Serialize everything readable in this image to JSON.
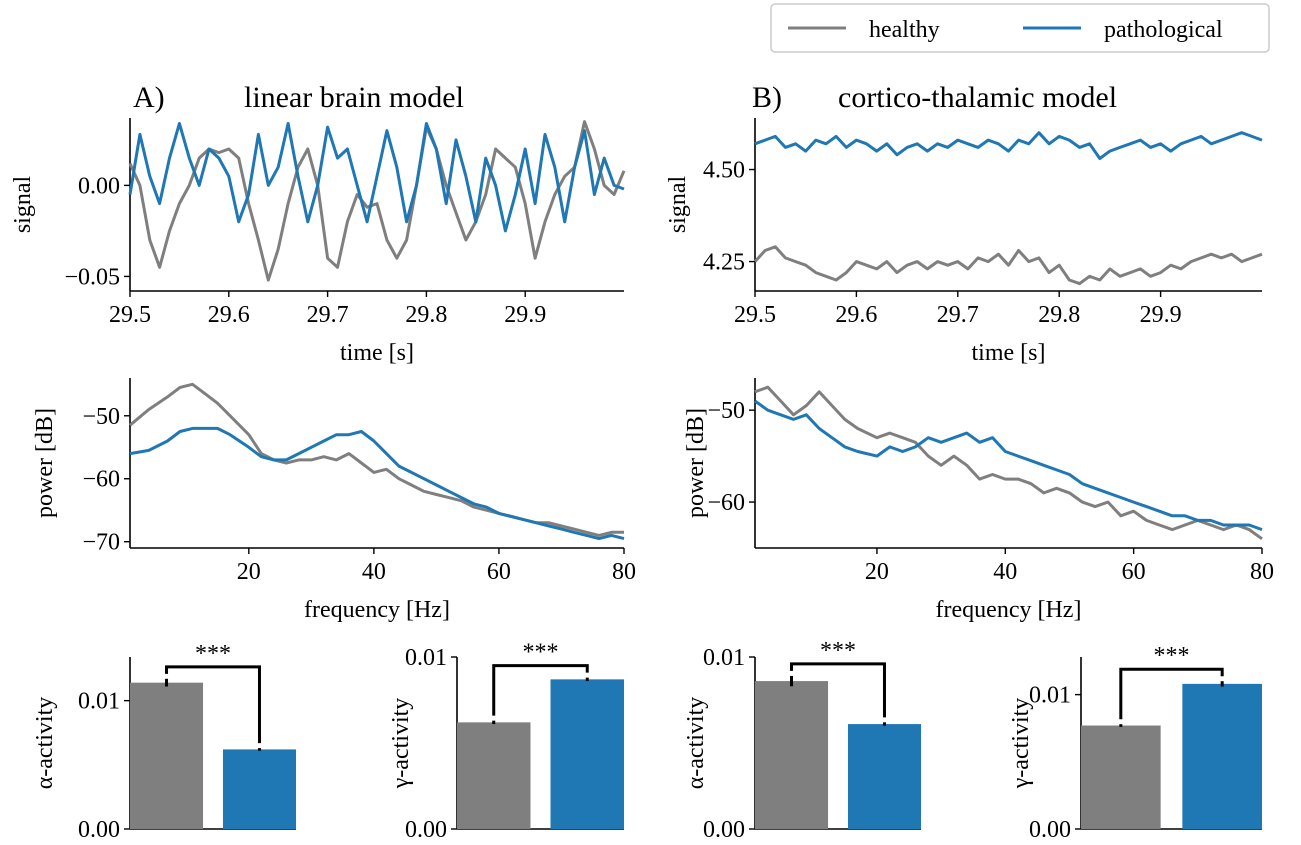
{
  "legend": {
    "entries": [
      {
        "label": "healthy",
        "color": "#7f7f7f"
      },
      {
        "label": "pathological",
        "color": "#1f77b4"
      }
    ],
    "placement": "top-right"
  },
  "colors": {
    "healthy": "#7f7f7f",
    "pathological": "#1f77b4"
  },
  "panels": {
    "A": {
      "letter": "A)",
      "title": "linear brain model"
    },
    "B": {
      "letter": "B)",
      "title": "cortico-thalamic model"
    }
  },
  "chart_data": [
    {
      "id": "signalA",
      "type": "line",
      "panel": "A",
      "xlabel": "time [s]",
      "ylabel": "signal",
      "xlim": [
        29.5,
        30.0
      ],
      "ylim": [
        -0.058,
        0.037
      ],
      "xticks": [
        29.5,
        29.6,
        29.7,
        29.8,
        29.9
      ],
      "xticklabels": [
        "29.5",
        "29.6",
        "29.7",
        "29.8",
        "29.9"
      ],
      "yticks": [
        -0.05,
        0.0
      ],
      "yticklabels": [
        "−0.05",
        "0.00"
      ],
      "series": [
        {
          "name": "healthy",
          "color": "#7f7f7f",
          "x": [
            29.5,
            29.51,
            29.52,
            29.53,
            29.54,
            29.55,
            29.56,
            29.57,
            29.58,
            29.59,
            29.6,
            29.61,
            29.62,
            29.63,
            29.64,
            29.65,
            29.66,
            29.67,
            29.68,
            29.69,
            29.7,
            29.71,
            29.72,
            29.73,
            29.74,
            29.75,
            29.76,
            29.77,
            29.78,
            29.79,
            29.8,
            29.81,
            29.82,
            29.83,
            29.84,
            29.85,
            29.86,
            29.87,
            29.88,
            29.89,
            29.9,
            29.91,
            29.92,
            29.93,
            29.94,
            29.95,
            29.96,
            29.97,
            29.98,
            29.99,
            30.0
          ],
          "y": [
            0.012,
            0.0,
            -0.03,
            -0.045,
            -0.025,
            -0.01,
            0.0,
            0.015,
            0.02,
            0.018,
            0.02,
            0.015,
            -0.01,
            -0.03,
            -0.052,
            -0.035,
            -0.01,
            0.01,
            0.02,
            0.0,
            -0.04,
            -0.045,
            -0.02,
            -0.005,
            -0.012,
            -0.01,
            -0.03,
            -0.04,
            -0.03,
            0.0,
            0.032,
            0.02,
            0.0,
            -0.015,
            -0.03,
            -0.02,
            -0.005,
            0.02,
            0.015,
            0.01,
            -0.01,
            -0.04,
            -0.02,
            -0.005,
            0.005,
            0.01,
            0.035,
            0.02,
            0.0,
            -0.005,
            0.008
          ]
        },
        {
          "name": "pathological",
          "color": "#1f77b4",
          "x": [
            29.5,
            29.51,
            29.52,
            29.53,
            29.54,
            29.55,
            29.56,
            29.57,
            29.58,
            29.59,
            29.6,
            29.61,
            29.62,
            29.63,
            29.64,
            29.65,
            29.66,
            29.67,
            29.68,
            29.69,
            29.7,
            29.71,
            29.72,
            29.73,
            29.74,
            29.75,
            29.76,
            29.77,
            29.78,
            29.79,
            29.8,
            29.81,
            29.82,
            29.83,
            29.84,
            29.85,
            29.86,
            29.87,
            29.88,
            29.89,
            29.9,
            29.91,
            29.92,
            29.93,
            29.94,
            29.95,
            29.96,
            29.97,
            29.98,
            29.99,
            30.0
          ],
          "y": [
            -0.005,
            0.028,
            0.005,
            -0.01,
            0.015,
            0.034,
            0.015,
            0.0,
            0.02,
            0.015,
            0.005,
            -0.02,
            -0.005,
            0.028,
            0.0,
            0.01,
            0.034,
            0.005,
            -0.02,
            0.0,
            0.032,
            0.015,
            0.02,
            0.0,
            -0.02,
            0.005,
            0.03,
            0.01,
            -0.02,
            0.0,
            0.034,
            0.02,
            -0.01,
            0.025,
            0.005,
            -0.02,
            0.015,
            0.0,
            -0.025,
            -0.005,
            0.02,
            -0.01,
            0.028,
            0.01,
            -0.02,
            0.01,
            0.03,
            -0.005,
            0.015,
            0.0,
            -0.002
          ]
        }
      ]
    },
    {
      "id": "signalB",
      "type": "line",
      "panel": "B",
      "xlabel": "time [s]",
      "ylabel": "signal",
      "xlim": [
        29.5,
        30.0
      ],
      "ylim": [
        4.17,
        4.64
      ],
      "xticks": [
        29.5,
        29.6,
        29.7,
        29.8,
        29.9
      ],
      "xticklabels": [
        "29.5",
        "29.6",
        "29.7",
        "29.8",
        "29.9"
      ],
      "yticks": [
        4.25,
        4.5
      ],
      "yticklabels": [
        "4.25",
        "4.50"
      ],
      "series": [
        {
          "name": "healthy",
          "color": "#7f7f7f",
          "x": [
            29.5,
            29.51,
            29.52,
            29.53,
            29.54,
            29.55,
            29.56,
            29.57,
            29.58,
            29.59,
            29.6,
            29.61,
            29.62,
            29.63,
            29.64,
            29.65,
            29.66,
            29.67,
            29.68,
            29.69,
            29.7,
            29.71,
            29.72,
            29.73,
            29.74,
            29.75,
            29.76,
            29.77,
            29.78,
            29.79,
            29.8,
            29.81,
            29.82,
            29.83,
            29.84,
            29.85,
            29.86,
            29.87,
            29.88,
            29.89,
            29.9,
            29.91,
            29.92,
            29.93,
            29.94,
            29.95,
            29.96,
            29.97,
            29.98,
            29.99,
            30.0
          ],
          "y": [
            4.25,
            4.28,
            4.29,
            4.26,
            4.25,
            4.24,
            4.22,
            4.21,
            4.2,
            4.22,
            4.25,
            4.24,
            4.23,
            4.25,
            4.22,
            4.24,
            4.25,
            4.23,
            4.25,
            4.24,
            4.25,
            4.23,
            4.26,
            4.25,
            4.27,
            4.24,
            4.28,
            4.25,
            4.26,
            4.22,
            4.24,
            4.2,
            4.19,
            4.21,
            4.2,
            4.23,
            4.21,
            4.22,
            4.23,
            4.21,
            4.22,
            4.24,
            4.23,
            4.25,
            4.26,
            4.27,
            4.26,
            4.27,
            4.25,
            4.26,
            4.27
          ]
        },
        {
          "name": "pathological",
          "color": "#1f77b4",
          "x": [
            29.5,
            29.51,
            29.52,
            29.53,
            29.54,
            29.55,
            29.56,
            29.57,
            29.58,
            29.59,
            29.6,
            29.61,
            29.62,
            29.63,
            29.64,
            29.65,
            29.66,
            29.67,
            29.68,
            29.69,
            29.7,
            29.71,
            29.72,
            29.73,
            29.74,
            29.75,
            29.76,
            29.77,
            29.78,
            29.79,
            29.8,
            29.81,
            29.82,
            29.83,
            29.84,
            29.85,
            29.86,
            29.87,
            29.88,
            29.89,
            29.9,
            29.91,
            29.92,
            29.93,
            29.94,
            29.95,
            29.96,
            29.97,
            29.98,
            29.99,
            30.0
          ],
          "y": [
            4.57,
            4.58,
            4.59,
            4.56,
            4.57,
            4.55,
            4.58,
            4.57,
            4.59,
            4.56,
            4.58,
            4.57,
            4.55,
            4.57,
            4.54,
            4.56,
            4.57,
            4.55,
            4.57,
            4.56,
            4.58,
            4.57,
            4.56,
            4.58,
            4.57,
            4.55,
            4.58,
            4.57,
            4.6,
            4.57,
            4.59,
            4.58,
            4.56,
            4.57,
            4.53,
            4.55,
            4.56,
            4.57,
            4.58,
            4.56,
            4.57,
            4.55,
            4.57,
            4.58,
            4.59,
            4.57,
            4.58,
            4.59,
            4.6,
            4.59,
            4.58
          ]
        }
      ]
    },
    {
      "id": "powerA",
      "type": "line",
      "panel": "A",
      "xlabel": "frequency [Hz]",
      "ylabel": "power [dB]",
      "xlim": [
        1,
        80
      ],
      "ylim": [
        -71,
        -44
      ],
      "xticks": [
        20,
        40,
        60,
        80
      ],
      "xticklabels": [
        "20",
        "40",
        "60",
        "80"
      ],
      "yticks": [
        -70,
        -60,
        -50
      ],
      "yticklabels": [
        "−70",
        "−60",
        "−50"
      ],
      "series": [
        {
          "name": "healthy",
          "color": "#7f7f7f",
          "x": [
            1,
            4,
            7,
            9,
            11,
            13,
            15,
            17,
            20,
            22,
            24,
            26,
            28,
            30,
            32,
            34,
            36,
            38,
            40,
            42,
            44,
            46,
            48,
            50,
            52,
            54,
            56,
            58,
            60,
            62,
            64,
            66,
            68,
            70,
            72,
            74,
            76,
            78,
            80
          ],
          "y": [
            -51.5,
            -49,
            -47,
            -45.5,
            -45,
            -46.5,
            -48,
            -50,
            -53,
            -56,
            -57,
            -57.5,
            -57,
            -57,
            -56.5,
            -57,
            -56,
            -57.5,
            -59,
            -58.5,
            -60,
            -61,
            -62,
            -62.5,
            -63,
            -63.5,
            -64.5,
            -65,
            -65.5,
            -66,
            -66.5,
            -67,
            -67,
            -67.5,
            -68,
            -68.5,
            -69,
            -68.5,
            -68.5
          ]
        },
        {
          "name": "pathological",
          "color": "#1f77b4",
          "x": [
            1,
            4,
            7,
            9,
            11,
            13,
            15,
            17,
            20,
            22,
            24,
            26,
            28,
            30,
            32,
            34,
            36,
            38,
            40,
            42,
            44,
            46,
            48,
            50,
            52,
            54,
            56,
            58,
            60,
            62,
            64,
            66,
            68,
            70,
            72,
            74,
            76,
            78,
            80
          ],
          "y": [
            -56,
            -55.5,
            -54,
            -52.5,
            -52,
            -52,
            -52,
            -53,
            -55,
            -56.5,
            -57,
            -57,
            -56,
            -55,
            -54,
            -53,
            -53,
            -52.5,
            -54,
            -56,
            -58,
            -59,
            -60,
            -61,
            -62,
            -63,
            -64,
            -64.5,
            -65.5,
            -66,
            -66.5,
            -67,
            -67.5,
            -68,
            -68.5,
            -69,
            -69.5,
            -69,
            -69.5
          ]
        }
      ]
    },
    {
      "id": "powerB",
      "type": "line",
      "panel": "B",
      "xlabel": "frequency [Hz]",
      "ylabel": "power [dB]",
      "xlim": [
        1,
        80
      ],
      "ylim": [
        -65,
        -46.5
      ],
      "xticks": [
        20,
        40,
        60,
        80
      ],
      "xticklabels": [
        "20",
        "40",
        "60",
        "80"
      ],
      "yticks": [
        -60,
        -50
      ],
      "yticklabels": [
        "−60",
        "−50"
      ],
      "series": [
        {
          "name": "healthy",
          "color": "#7f7f7f",
          "x": [
            1,
            3,
            5,
            7,
            9,
            11,
            13,
            15,
            17,
            20,
            22,
            24,
            26,
            28,
            30,
            32,
            34,
            36,
            38,
            40,
            42,
            44,
            46,
            48,
            50,
            52,
            54,
            56,
            58,
            60,
            62,
            64,
            66,
            68,
            70,
            72,
            74,
            76,
            78,
            80
          ],
          "y": [
            -48,
            -47.5,
            -49,
            -50.5,
            -49.5,
            -48,
            -49.5,
            -51,
            -52,
            -53,
            -52.5,
            -53,
            -53.5,
            -55,
            -56,
            -55,
            -56,
            -57.5,
            -57,
            -57.5,
            -57.5,
            -58,
            -59,
            -58.5,
            -59,
            -60,
            -60.5,
            -60,
            -61.5,
            -61,
            -62,
            -62.5,
            -63,
            -62.5,
            -62,
            -62.5,
            -63,
            -62.5,
            -63,
            -64
          ]
        },
        {
          "name": "pathological",
          "color": "#1f77b4",
          "x": [
            1,
            3,
            5,
            7,
            9,
            11,
            13,
            15,
            17,
            20,
            22,
            24,
            26,
            28,
            30,
            32,
            34,
            36,
            38,
            40,
            42,
            44,
            46,
            48,
            50,
            52,
            54,
            56,
            58,
            60,
            62,
            64,
            66,
            68,
            70,
            72,
            74,
            76,
            78,
            80
          ],
          "y": [
            -49,
            -50,
            -50.5,
            -51,
            -50.5,
            -52,
            -53,
            -54,
            -54.5,
            -55,
            -54,
            -54.5,
            -54,
            -53,
            -53.5,
            -53,
            -52.5,
            -53.5,
            -53,
            -54.5,
            -55,
            -55.5,
            -56,
            -56.5,
            -57,
            -58,
            -58.5,
            -59,
            -59.5,
            -60,
            -60.5,
            -61,
            -61.5,
            -61.5,
            -62,
            -62,
            -62.5,
            -62.5,
            -62.5,
            -63
          ]
        }
      ]
    },
    {
      "id": "alphaA",
      "type": "bar",
      "panel": "A",
      "ylabel": "α-activity",
      "ylim": [
        0,
        0.0134
      ],
      "yticks": [
        0.0,
        0.01
      ],
      "yticklabels": [
        "0.00",
        "0.01"
      ],
      "categories": [
        "healthy",
        "pathological"
      ],
      "values": [
        0.0114,
        0.0062
      ],
      "errors": [
        0.0003,
        0.0001
      ],
      "colors": [
        "#7f7f7f",
        "#1f77b4"
      ],
      "significance": "***"
    },
    {
      "id": "gammaA",
      "type": "bar",
      "panel": "A",
      "ylabel": "γ-activity",
      "ylim": [
        0,
        0.01
      ],
      "yticks": [
        0.0,
        0.01
      ],
      "yticklabels": [
        "0.00",
        "0.01"
      ],
      "categories": [
        "healthy",
        "pathological"
      ],
      "values": [
        0.0062,
        0.0087
      ],
      "errors": [
        0.0001,
        0.0001
      ],
      "colors": [
        "#7f7f7f",
        "#1f77b4"
      ],
      "significance": "***"
    },
    {
      "id": "alphaB",
      "type": "bar",
      "panel": "B",
      "ylabel": "α-activity",
      "ylim": [
        0,
        0.01
      ],
      "yticks": [
        0.0,
        0.01
      ],
      "yticklabels": [
        "0.00",
        "0.01"
      ],
      "categories": [
        "healthy",
        "pathological"
      ],
      "values": [
        0.0086,
        0.0061
      ],
      "errors": [
        0.0003,
        0.0001
      ],
      "colors": [
        "#7f7f7f",
        "#1f77b4"
      ],
      "significance": "***"
    },
    {
      "id": "gammaB",
      "type": "bar",
      "panel": "B",
      "ylabel": "γ-activity",
      "ylim": [
        0,
        0.0128
      ],
      "yticks": [
        0.0,
        0.01
      ],
      "yticklabels": [
        "0.00",
        "0.01"
      ],
      "categories": [
        "healthy",
        "pathological"
      ],
      "values": [
        0.0077,
        0.0108
      ],
      "errors": [
        0.0001,
        0.0002
      ],
      "colors": [
        "#7f7f7f",
        "#1f77b4"
      ],
      "significance": "***"
    }
  ]
}
